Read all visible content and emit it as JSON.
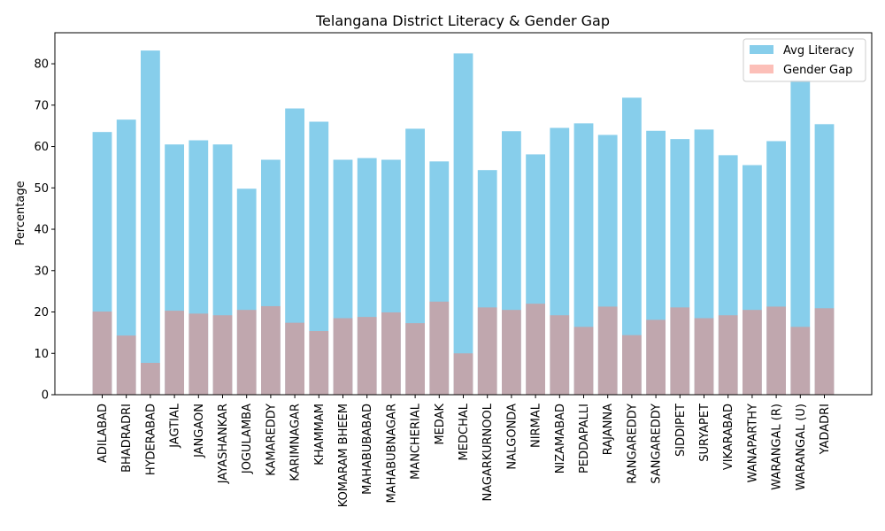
{
  "chart_data": {
    "type": "bar",
    "title": "Telangana District Literacy & Gender Gap",
    "xlabel": "",
    "ylabel": "Percentage",
    "ylim": [
      0,
      87.5
    ],
    "yticks": [
      0,
      10,
      20,
      30,
      40,
      50,
      60,
      70,
      80
    ],
    "grid": false,
    "legend_position": "top-right",
    "overlaid": true,
    "categories": [
      "ADILABAD",
      "BHADRADRI",
      "HYDERABAD",
      "JAGTIAL",
      "JANGAON",
      "JAYASHANKAR",
      "JOGULAMBA",
      "KAMAREDDY",
      "KARIMNAGAR",
      "KHAMMAM",
      "KOMARAM BHEEM",
      "MAHABUBABAD",
      "MAHABUBNAGAR",
      "MANCHERIAL",
      "MEDAK",
      "MEDCHAL",
      "NAGARKURNOOL",
      "NALGONDA",
      "NIRMAL",
      "NIZAMABAD",
      "PEDDAPALLI",
      "RAJANNA",
      "RANGAREDDY",
      "SANGAREDDY",
      "SIDDIPET",
      "SURYAPET",
      "VIKARABAD",
      "WANAPARTHY",
      "WARANGAL (R)",
      "WARANGAL (U)",
      "YADADRI"
    ],
    "series": [
      {
        "name": "Avg Literacy",
        "color": "#87ceeb",
        "values": [
          63.5,
          66.5,
          83.2,
          60.5,
          61.5,
          60.5,
          49.8,
          56.8,
          69.2,
          66.0,
          56.8,
          57.2,
          56.8,
          64.3,
          56.4,
          82.5,
          54.3,
          63.7,
          58.1,
          64.5,
          65.6,
          62.8,
          71.8,
          63.8,
          61.8,
          64.1,
          57.9,
          55.5,
          61.3,
          76.0,
          65.4
        ]
      },
      {
        "name": "Gender Gap",
        "color": "#fa8072",
        "opacity": 0.5,
        "values": [
          20.1,
          14.3,
          7.7,
          20.3,
          19.6,
          19.2,
          20.5,
          21.4,
          17.4,
          15.4,
          18.5,
          18.8,
          19.9,
          17.3,
          22.5,
          10.0,
          21.1,
          20.5,
          22.0,
          19.2,
          16.4,
          21.3,
          14.4,
          18.1,
          21.1,
          18.5,
          19.2,
          20.5,
          21.3,
          16.4,
          20.9
        ]
      }
    ]
  }
}
